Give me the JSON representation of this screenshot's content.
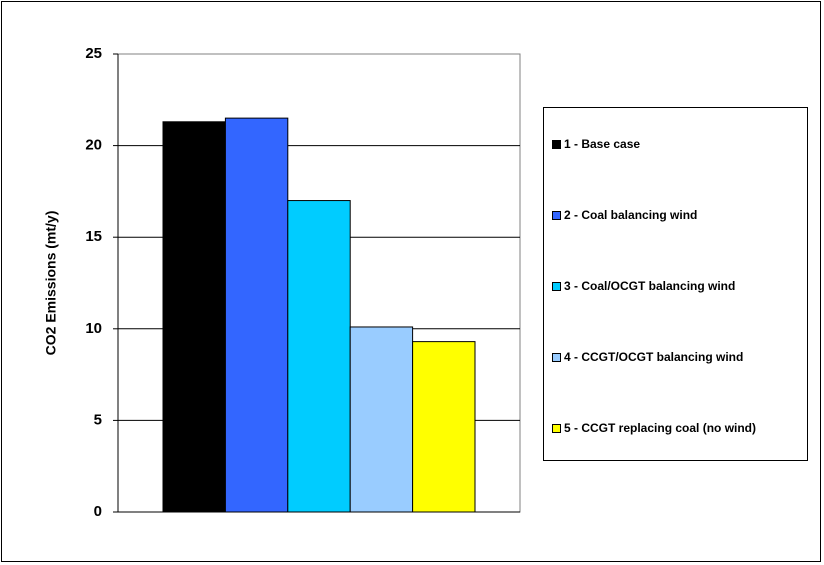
{
  "chart_data": {
    "type": "bar",
    "title": "",
    "xlabel": "",
    "ylabel": "CO2 Emissions (mt/y)",
    "ylim": [
      0,
      25
    ],
    "yticks": [
      0,
      5,
      10,
      15,
      20,
      25
    ],
    "grid": true,
    "legend_position": "right",
    "series": [
      {
        "name": "1 - Base case",
        "value": 21.3,
        "color": "#000000"
      },
      {
        "name": "2 - Coal balancing wind",
        "value": 21.5,
        "color": "#3366FF"
      },
      {
        "name": "3 - Coal/OCGT balancing wind",
        "value": 17.0,
        "color": "#00CCFF"
      },
      {
        "name": "4 - CCGT/OCGT balancing wind",
        "value": 10.1,
        "color": "#99CCFF"
      },
      {
        "name": "5 - CCGT replacing coal (no wind)",
        "value": 9.3,
        "color": "#FFFF00"
      }
    ]
  }
}
